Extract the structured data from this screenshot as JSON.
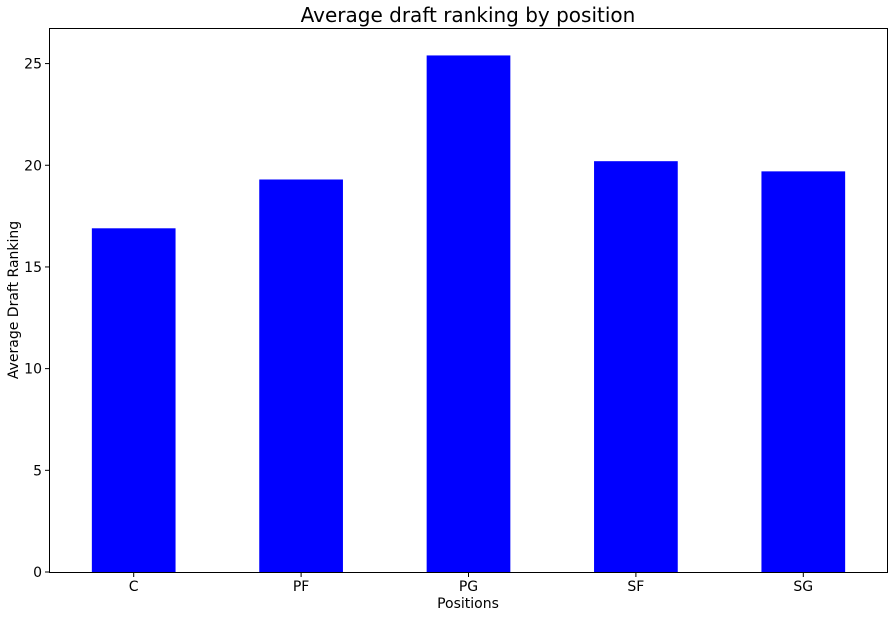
{
  "chart_data": {
    "type": "bar",
    "title": "Average draft ranking by position",
    "xlabel": "Positions",
    "ylabel": "Average Draft Ranking",
    "categories": [
      "C",
      "PF",
      "PG",
      "SF",
      "SG"
    ],
    "values": [
      16.9,
      19.3,
      25.4,
      20.2,
      19.7
    ],
    "ylim": [
      0,
      26.7
    ],
    "yticks": [
      "0",
      "5",
      "10",
      "15",
      "20",
      "25"
    ],
    "grid": false,
    "legend": "none",
    "bar_color": "#0000ff",
    "axis_color": "#000000"
  }
}
